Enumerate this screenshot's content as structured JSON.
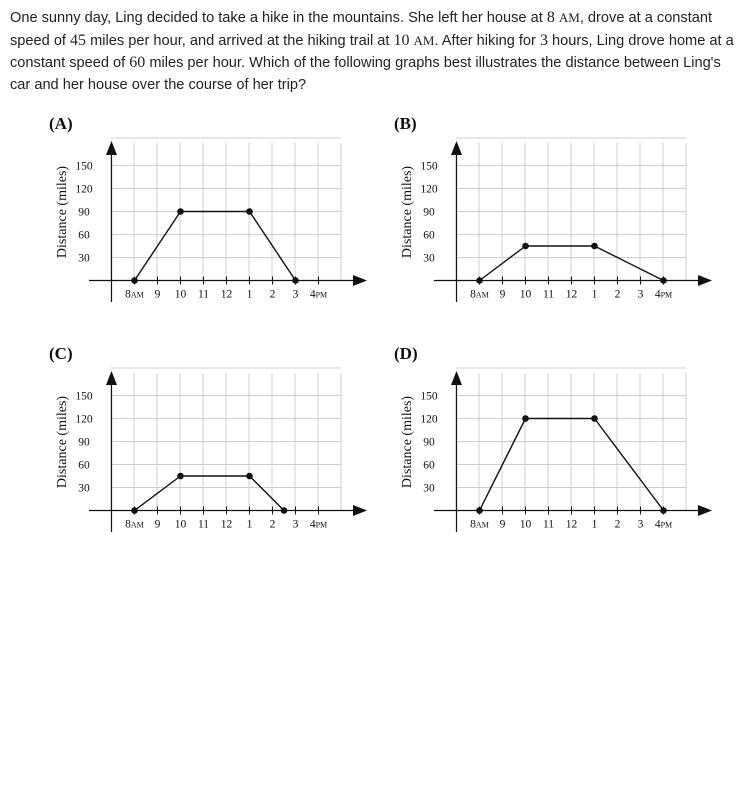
{
  "question": {
    "t1": "One sunny day, Ling decided to take a hike in the mountains. She left her house at ",
    "v1": "8",
    "u1": "AM",
    "t2": ", drove at a constant speed of ",
    "v2": "45",
    "t3": " miles per hour, and arrived at the hiking trail at ",
    "v3": "10",
    "u3": "AM",
    "t4": ". After hiking for ",
    "v4": "3",
    "t5": " hours, Ling drove home at a constant speed of ",
    "v5": "60",
    "t6": " miles per hour. Which of the following graphs best illustrates the distance between Ling's car and her house over the course of her trip?"
  },
  "chart_data": [
    {
      "type": "line",
      "label": "(A)",
      "ylabel": "Distance (miles)",
      "x": [
        8,
        10,
        13,
        15
      ],
      "y": [
        0,
        90,
        90,
        0
      ],
      "xlim": [
        8,
        16
      ],
      "ylim": [
        0,
        150
      ],
      "xticks": [
        [
          "8",
          "AM"
        ],
        [
          "9",
          ""
        ],
        [
          "10",
          ""
        ],
        [
          "11",
          ""
        ],
        [
          "12",
          ""
        ],
        [
          "1",
          ""
        ],
        [
          "2",
          ""
        ],
        [
          "3",
          ""
        ],
        [
          "4",
          "PM"
        ]
      ],
      "yticks": [
        "30",
        "60",
        "90",
        "120",
        "150"
      ],
      "grid": true
    },
    {
      "type": "line",
      "label": "(B)",
      "ylabel": "Distance (miles)",
      "x": [
        8,
        10,
        13,
        16
      ],
      "y": [
        0,
        45,
        45,
        0
      ],
      "xlim": [
        8,
        16
      ],
      "ylim": [
        0,
        150
      ],
      "xticks": [
        [
          "8",
          "AM"
        ],
        [
          "9",
          ""
        ],
        [
          "10",
          ""
        ],
        [
          "11",
          ""
        ],
        [
          "12",
          ""
        ],
        [
          "1",
          ""
        ],
        [
          "2",
          ""
        ],
        [
          "3",
          ""
        ],
        [
          "4",
          "PM"
        ]
      ],
      "yticks": [
        "30",
        "60",
        "90",
        "120",
        "150"
      ],
      "grid": true
    },
    {
      "type": "line",
      "label": "(C)",
      "ylabel": "Distance (miles)",
      "x": [
        8,
        10,
        13,
        14.5
      ],
      "y": [
        0,
        45,
        45,
        0
      ],
      "xlim": [
        8,
        16
      ],
      "ylim": [
        0,
        150
      ],
      "xticks": [
        [
          "8",
          "AM"
        ],
        [
          "9",
          ""
        ],
        [
          "10",
          ""
        ],
        [
          "11",
          ""
        ],
        [
          "12",
          ""
        ],
        [
          "1",
          ""
        ],
        [
          "2",
          ""
        ],
        [
          "3",
          ""
        ],
        [
          "4",
          "PM"
        ]
      ],
      "yticks": [
        "30",
        "60",
        "90",
        "120",
        "150"
      ],
      "grid": true
    },
    {
      "type": "line",
      "label": "(D)",
      "ylabel": "Distance (miles)",
      "x": [
        8,
        10,
        13,
        16
      ],
      "y": [
        0,
        120,
        120,
        0
      ],
      "xlim": [
        8,
        16
      ],
      "ylim": [
        0,
        150
      ],
      "xticks": [
        [
          "8",
          "AM"
        ],
        [
          "9",
          ""
        ],
        [
          "10",
          ""
        ],
        [
          "11",
          ""
        ],
        [
          "12",
          ""
        ],
        [
          "1",
          ""
        ],
        [
          "2",
          ""
        ],
        [
          "3",
          ""
        ],
        [
          "4",
          "PM"
        ]
      ],
      "yticks": [
        "30",
        "60",
        "90",
        "120",
        "150"
      ],
      "grid": true
    }
  ]
}
